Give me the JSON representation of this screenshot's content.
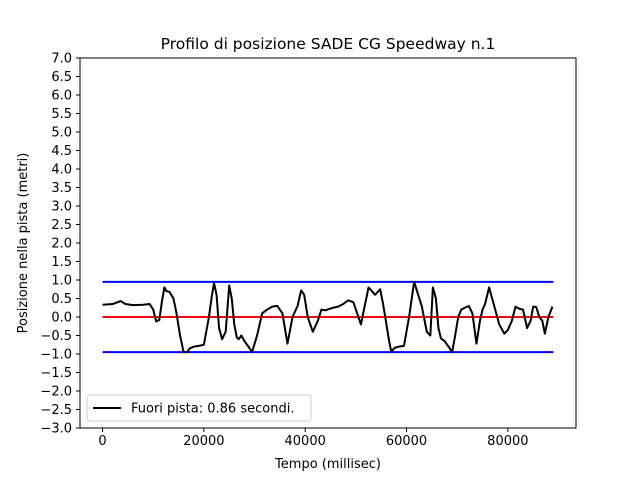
{
  "chart_data": {
    "type": "line",
    "title": "Profilo di posizione SADE CG Speedway n.1",
    "xlabel": "Tempo (millisec)",
    "ylabel": "Posizione nella pista (metri)",
    "xlim": [
      -4450,
      93450
    ],
    "ylim": [
      -3.0,
      7.0
    ],
    "xticks": [
      0,
      20000,
      40000,
      60000,
      80000
    ],
    "xtick_labels": [
      "0",
      "20000",
      "40000",
      "60000",
      "80000"
    ],
    "yticks": [
      7.0,
      6.5,
      6.0,
      5.5,
      5.0,
      4.5,
      4.0,
      3.5,
      3.0,
      2.5,
      2.0,
      1.5,
      1.0,
      0.5,
      0.0,
      -0.5,
      -1.0,
      -1.5,
      -2.0,
      -2.5,
      -3.0
    ],
    "ytick_labels": [
      "7.0",
      "6.5",
      "6.0",
      "5.5",
      "5.0",
      "4.5",
      "4.0",
      "3.5",
      "3.0",
      "2.5",
      "2.0",
      "1.5",
      "1.0",
      "0.5",
      "0.0",
      "−0.5",
      "−1.0",
      "−1.5",
      "−2.0",
      "−2.5",
      "−3.0"
    ],
    "grid": false,
    "legend": {
      "position": "lower-left",
      "entries": [
        "Fuori pista: 0.86 secondi."
      ]
    },
    "series": [
      {
        "name": "Fuori pista: 0.86 secondi.",
        "color": "#000000",
        "x": [
          0,
          2000,
          3000,
          3600,
          4500,
          6000,
          8000,
          9300,
          10000,
          10600,
          11200,
          11700,
          12200,
          12600,
          13200,
          14000,
          14600,
          15300,
          16000,
          16700,
          17200,
          18000,
          19000,
          20000,
          21000,
          21500,
          22000,
          22500,
          23000,
          23600,
          24300,
          25000,
          25500,
          26000,
          26500,
          26900,
          27400,
          28000,
          28800,
          29500,
          30500,
          31500,
          32500,
          33500,
          34500,
          35500,
          36500,
          37500,
          38500,
          39200,
          39800,
          40500,
          41500,
          42500,
          43200,
          44000,
          44800,
          45500,
          46500,
          47500,
          48500,
          49500,
          51000,
          52500,
          53800,
          54800,
          55300,
          55800,
          56500,
          57000,
          57500,
          58000,
          58500,
          59500,
          60500,
          61500,
          63000,
          64000,
          64700,
          65200,
          65800,
          66300,
          66800,
          67500,
          68300,
          69000,
          69600,
          70200,
          70800,
          71500,
          72300,
          73000,
          73800,
          74500,
          75000,
          75500,
          76300,
          77300,
          78300,
          79300,
          80000,
          80800,
          81500,
          82300,
          83000,
          83800,
          84500,
          85000,
          85600,
          86200,
          86800,
          87300,
          88000,
          88800
        ],
        "values": [
          0.33,
          0.35,
          0.4,
          0.43,
          0.35,
          0.32,
          0.33,
          0.35,
          0.2,
          -0.12,
          -0.08,
          0.4,
          0.8,
          0.7,
          0.68,
          0.5,
          0.1,
          -0.5,
          -0.95,
          -0.95,
          -0.85,
          -0.8,
          -0.78,
          -0.75,
          0.0,
          0.5,
          0.92,
          0.6,
          -0.3,
          -0.6,
          -0.4,
          0.85,
          0.5,
          -0.2,
          -0.55,
          -0.6,
          -0.5,
          -0.65,
          -0.8,
          -0.95,
          -0.5,
          0.1,
          0.2,
          0.28,
          0.3,
          0.1,
          -0.72,
          0.0,
          0.3,
          0.72,
          0.6,
          0.0,
          -0.4,
          -0.1,
          0.2,
          0.18,
          0.22,
          0.25,
          0.28,
          0.35,
          0.45,
          0.4,
          -0.2,
          0.8,
          0.6,
          0.75,
          0.4,
          0.0,
          -0.6,
          -0.95,
          -0.85,
          -0.82,
          -0.8,
          -0.78,
          0.0,
          0.95,
          0.3,
          -0.4,
          -0.5,
          0.8,
          0.5,
          -0.3,
          -0.58,
          -0.65,
          -0.8,
          -0.95,
          -0.5,
          0.0,
          0.2,
          0.25,
          0.3,
          0.1,
          -0.72,
          -0.1,
          0.2,
          0.35,
          0.8,
          0.3,
          -0.2,
          -0.45,
          -0.35,
          -0.1,
          0.28,
          0.22,
          0.2,
          -0.3,
          -0.1,
          0.28,
          0.27,
          0.0,
          -0.1,
          -0.45,
          0.0,
          0.28
        ]
      },
      {
        "name": "",
        "color": "#0000ff",
        "x": [
          0,
          89000
        ],
        "values": [
          0.95,
          0.95
        ]
      },
      {
        "name": "",
        "color": "#0000ff",
        "x": [
          0,
          89000
        ],
        "values": [
          -0.95,
          -0.95
        ]
      },
      {
        "name": "",
        "color": "#ff0000",
        "x": [
          0,
          89000
        ],
        "values": [
          0.0,
          0.0
        ]
      }
    ]
  }
}
